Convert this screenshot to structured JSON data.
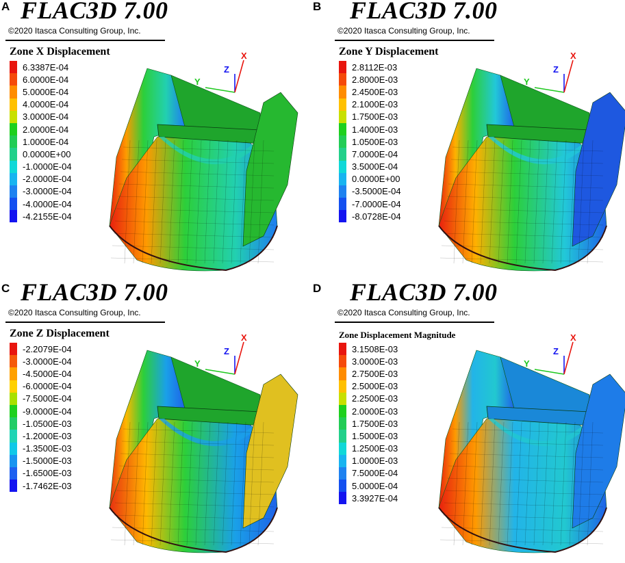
{
  "panels": [
    {
      "letter": "A",
      "title": "FLAC3D 7.00",
      "copyright": "©2020 Itasca Consulting Group, Inc.",
      "legend_title": "Zone X Displacement",
      "legend_values": [
        "6.3387E-04",
        "6.0000E-04",
        "5.0000E-04",
        "4.0000E-04",
        "3.0000E-04",
        "2.0000E-04",
        "1.0000E-04",
        "0.0000E+00",
        "-1.0000E-04",
        "-2.0000E-04",
        "-3.0000E-04",
        "-4.0000E-04",
        "-4.2155E-04"
      ],
      "axes": {
        "x": "X",
        "y": "Y",
        "z": "Z"
      }
    },
    {
      "letter": "B",
      "title": "FLAC3D 7.00",
      "copyright": "©2020 Itasca Consulting Group, Inc.",
      "legend_title": "Zone Y Displacement",
      "legend_values": [
        "2.8112E-03",
        "2.8000E-03",
        "2.4500E-03",
        "2.1000E-03",
        "1.7500E-03",
        "1.4000E-03",
        "1.0500E-03",
        "7.0000E-04",
        "3.5000E-04",
        "0.0000E+00",
        "-3.5000E-04",
        "-7.0000E-04",
        "-8.0728E-04"
      ],
      "axes": {
        "x": "X",
        "y": "Y",
        "z": "Z"
      }
    },
    {
      "letter": "C",
      "title": "FLAC3D 7.00",
      "copyright": "©2020 Itasca Consulting Group, Inc.",
      "legend_title": "Zone Z Displacement",
      "legend_values": [
        "-2.2079E-04",
        "-3.0000E-04",
        "-4.5000E-04",
        "-6.0000E-04",
        "-7.5000E-04",
        "-9.0000E-04",
        "-1.0500E-03",
        "-1.2000E-03",
        "-1.3500E-03",
        "-1.5000E-03",
        "-1.6500E-03",
        "-1.7462E-03"
      ],
      "axes": {
        "x": "X",
        "y": "Y",
        "z": "Z"
      }
    },
    {
      "letter": "D",
      "title": "FLAC3D 7.00",
      "copyright": "©2020 Itasca Consulting Group, Inc.",
      "legend_title": "Zone Displacement Magnitude",
      "legend_values": [
        "3.1508E-03",
        "3.0000E-03",
        "2.7500E-03",
        "2.5000E-03",
        "2.2500E-03",
        "2.0000E-03",
        "1.7500E-03",
        "1.5000E-03",
        "1.2500E-03",
        "1.0000E-03",
        "7.5000E-04",
        "5.0000E-04",
        "3.3927E-04"
      ],
      "axes": {
        "x": "X",
        "y": "Y",
        "z": "Z"
      }
    }
  ],
  "colors": {
    "legend_13": [
      "#e8150e",
      "#f54a0a",
      "#ff8c00",
      "#ffc000",
      "#c8e000",
      "#1ed01e",
      "#22cc55",
      "#22d08a",
      "#10d8d8",
      "#18b4f0",
      "#1e82f0",
      "#1450f0",
      "#1414f0"
    ],
    "legend_12": [
      "#e8150e",
      "#f55a0a",
      "#ffa000",
      "#ffd000",
      "#a8e000",
      "#1ed01e",
      "#22cc66",
      "#20d4b4",
      "#10c8e8",
      "#1894f0",
      "#1e60f0",
      "#1414f0"
    ],
    "axis_x": "#e8150e",
    "axis_y": "#1ec81e",
    "axis_z": "#1414f0"
  }
}
